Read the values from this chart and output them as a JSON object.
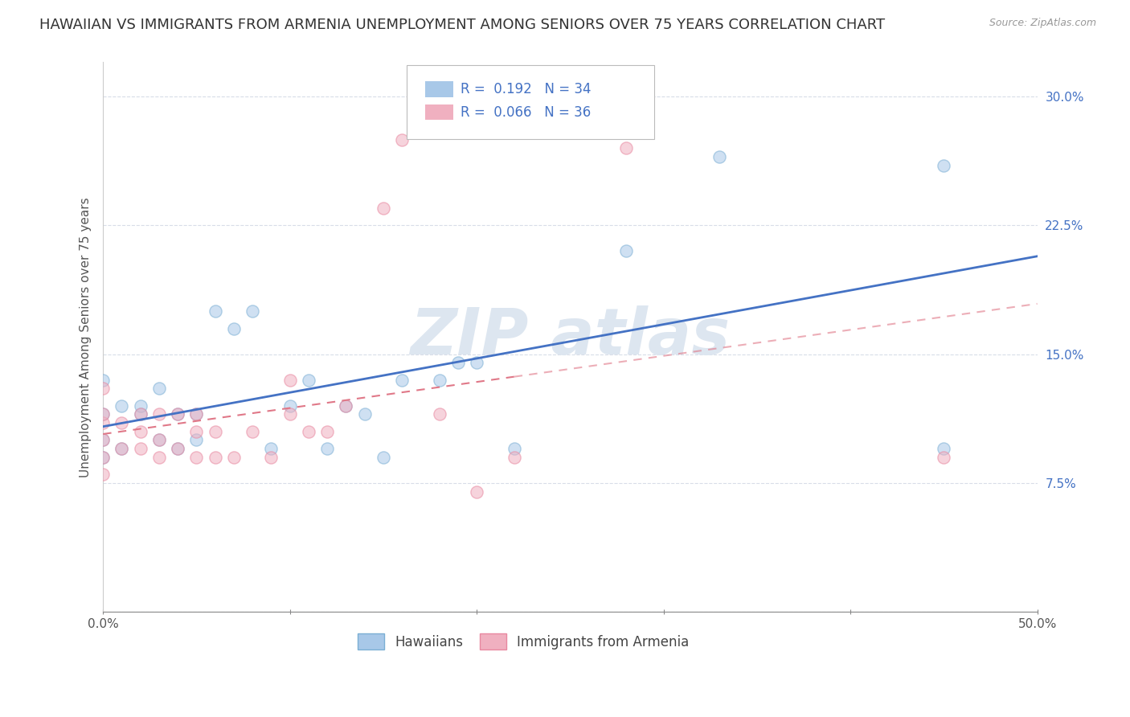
{
  "title": "HAWAIIAN VS IMMIGRANTS FROM ARMENIA UNEMPLOYMENT AMONG SENIORS OVER 75 YEARS CORRELATION CHART",
  "source": "Source: ZipAtlas.com",
  "ylabel": "Unemployment Among Seniors over 75 years",
  "xlim": [
    0,
    0.5
  ],
  "ylim": [
    0,
    0.32
  ],
  "xticks": [
    0.0,
    0.1,
    0.2,
    0.3,
    0.4,
    0.5
  ],
  "xticklabels": [
    "0.0%",
    "",
    "",
    "",
    "",
    "50.0%"
  ],
  "yticks": [
    0.0,
    0.075,
    0.15,
    0.225,
    0.3
  ],
  "yticklabels_right": [
    "",
    "7.5%",
    "15.0%",
    "22.5%",
    "30.0%"
  ],
  "hawaiian_x": [
    0.0,
    0.0,
    0.0,
    0.0,
    0.01,
    0.01,
    0.02,
    0.02,
    0.03,
    0.03,
    0.04,
    0.04,
    0.05,
    0.05,
    0.06,
    0.07,
    0.08,
    0.09,
    0.1,
    0.11,
    0.12,
    0.13,
    0.14,
    0.15,
    0.16,
    0.18,
    0.19,
    0.2,
    0.22,
    0.28,
    0.33,
    0.45,
    0.45
  ],
  "hawaiian_y": [
    0.09,
    0.1,
    0.115,
    0.135,
    0.095,
    0.12,
    0.115,
    0.12,
    0.1,
    0.13,
    0.095,
    0.115,
    0.115,
    0.1,
    0.175,
    0.165,
    0.175,
    0.095,
    0.12,
    0.135,
    0.095,
    0.12,
    0.115,
    0.09,
    0.135,
    0.135,
    0.145,
    0.145,
    0.095,
    0.21,
    0.265,
    0.095,
    0.26
  ],
  "armenia_x": [
    0.0,
    0.0,
    0.0,
    0.0,
    0.0,
    0.0,
    0.01,
    0.01,
    0.02,
    0.02,
    0.02,
    0.03,
    0.03,
    0.03,
    0.04,
    0.04,
    0.05,
    0.05,
    0.05,
    0.06,
    0.06,
    0.07,
    0.08,
    0.09,
    0.1,
    0.1,
    0.11,
    0.12,
    0.13,
    0.15,
    0.16,
    0.18,
    0.2,
    0.22,
    0.28,
    0.45
  ],
  "armenia_y": [
    0.08,
    0.09,
    0.1,
    0.11,
    0.115,
    0.13,
    0.095,
    0.11,
    0.095,
    0.105,
    0.115,
    0.09,
    0.1,
    0.115,
    0.095,
    0.115,
    0.09,
    0.105,
    0.115,
    0.09,
    0.105,
    0.09,
    0.105,
    0.09,
    0.115,
    0.135,
    0.105,
    0.105,
    0.12,
    0.235,
    0.275,
    0.115,
    0.07,
    0.09,
    0.27,
    0.09
  ],
  "hawaiian_color": "#a8c8e8",
  "armenia_color": "#f0b0c0",
  "hawaiian_edge_color": "#7bafd4",
  "armenia_edge_color": "#e888a0",
  "hawaiian_line_color": "#4472c4",
  "armenia_line_color": "#e07888",
  "background_color": "#ffffff",
  "grid_color": "#d8dde8",
  "title_fontsize": 13,
  "axis_fontsize": 11,
  "tick_fontsize": 11,
  "legend_fontsize": 12,
  "scatter_size": 120,
  "scatter_alpha": 0.55,
  "legend_color": "#4472c4",
  "watermark_color": "#dde6f0"
}
